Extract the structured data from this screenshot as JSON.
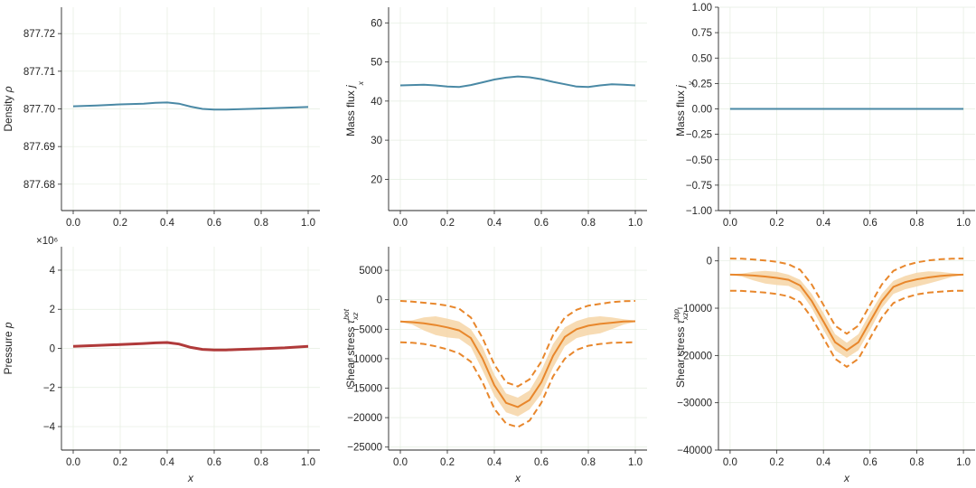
{
  "chart_data": [
    {
      "type": "line",
      "name": "density",
      "ylabel": "Density ρ",
      "ylabel_text": "Density",
      "ylabel_sym": "ρ",
      "xlabel": "",
      "xlim": [
        -0.05,
        1.05
      ],
      "ylim": [
        877.673,
        877.727
      ],
      "xticks": [
        "0.0",
        "0.2",
        "0.4",
        "0.6",
        "0.8",
        "1.0"
      ],
      "yticks": [
        "877.68",
        "877.69",
        "877.70",
        "877.71",
        "877.72"
      ],
      "grid": true,
      "series": [
        {
          "color": "#4a89a5",
          "x": [
            0.0,
            0.1,
            0.2,
            0.3,
            0.35,
            0.4,
            0.45,
            0.5,
            0.55,
            0.6,
            0.65,
            0.7,
            0.8,
            0.9,
            1.0
          ],
          "y": [
            877.7007,
            877.7009,
            877.7012,
            877.7014,
            877.7016,
            877.7017,
            877.7014,
            877.7006,
            877.7,
            877.6998,
            877.6998,
            877.6999,
            877.7001,
            877.7003,
            877.7005
          ]
        }
      ]
    },
    {
      "type": "line",
      "name": "mass-flux-x",
      "ylabel": "Mass flux jx",
      "ylabel_text": "Mass flux",
      "ylabel_sym": "j",
      "ylabel_sub": "x",
      "xlabel": "",
      "xlim": [
        -0.05,
        1.05
      ],
      "ylim": [
        12,
        64
      ],
      "xticks": [
        "0.0",
        "0.2",
        "0.4",
        "0.6",
        "0.8",
        "1.0"
      ],
      "yticks": [
        "20",
        "30",
        "40",
        "50",
        "60"
      ],
      "grid": true,
      "series": [
        {
          "color": "#4a89a5",
          "x": [
            0.0,
            0.05,
            0.1,
            0.15,
            0.2,
            0.25,
            0.3,
            0.35,
            0.4,
            0.45,
            0.5,
            0.55,
            0.6,
            0.65,
            0.7,
            0.75,
            0.8,
            0.85,
            0.9,
            0.95,
            1.0
          ],
          "y": [
            44.0,
            44.1,
            44.2,
            44.0,
            43.7,
            43.6,
            44.1,
            44.8,
            45.5,
            46.0,
            46.3,
            46.1,
            45.6,
            44.9,
            44.3,
            43.7,
            43.6,
            44.0,
            44.3,
            44.2,
            44.0
          ]
        }
      ]
    },
    {
      "type": "line",
      "name": "mass-flux-y",
      "ylabel": "Mass flux jy",
      "ylabel_text": "Mass flux",
      "ylabel_sym": "j",
      "ylabel_sub": "y",
      "xlabel": "",
      "xlim": [
        -0.05,
        1.05
      ],
      "ylim": [
        -1.0,
        1.0
      ],
      "xticks": [
        "0.0",
        "0.2",
        "0.4",
        "0.6",
        "0.8",
        "1.0"
      ],
      "yticks": [
        "−1.00",
        "−0.75",
        "−0.50",
        "−0.25",
        "0.00",
        "0.25",
        "0.50",
        "0.75",
        "1.00"
      ],
      "grid": true,
      "series": [
        {
          "color": "#4a89a5",
          "x": [
            0.0,
            1.0
          ],
          "y": [
            0.0,
            0.0
          ]
        }
      ]
    },
    {
      "type": "line",
      "name": "pressure",
      "ylabel": "Pressure p",
      "ylabel_text": "Pressure",
      "ylabel_sym": "p",
      "xlabel": "x",
      "multiplier": "×10⁶",
      "xlim": [
        -0.05,
        1.05
      ],
      "ylim": [
        -5.2,
        5.2
      ],
      "xticks": [
        "0.0",
        "0.2",
        "0.4",
        "0.6",
        "0.8",
        "1.0"
      ],
      "yticks": [
        "−4",
        "−2",
        "0",
        "2",
        "4"
      ],
      "grid": true,
      "series": [
        {
          "color": "#b03a3a",
          "x": [
            0.0,
            0.1,
            0.2,
            0.3,
            0.35,
            0.4,
            0.45,
            0.5,
            0.55,
            0.6,
            0.65,
            0.7,
            0.8,
            0.9,
            1.0
          ],
          "y": [
            0.1,
            0.15,
            0.2,
            0.25,
            0.28,
            0.3,
            0.22,
            0.05,
            -0.05,
            -0.08,
            -0.08,
            -0.06,
            -0.02,
            0.03,
            0.1
          ]
        }
      ]
    },
    {
      "type": "area",
      "name": "shear-bot",
      "ylabel": "Shear stress τxz bot",
      "ylabel_text": "Shear stress",
      "ylabel_sym": "τ",
      "ylabel_sub": "xz",
      "ylabel_sup": "bot",
      "xlabel": "x",
      "xlim": [
        -0.05,
        1.05
      ],
      "ylim": [
        -25500,
        9000
      ],
      "xticks": [
        "0.0",
        "0.2",
        "0.4",
        "0.6",
        "0.8",
        "1.0"
      ],
      "yticks": [
        "−25000",
        "−20000",
        "−15000",
        "−10000",
        "−5000",
        "0",
        "5000"
      ],
      "grid": true,
      "x": [
        0.0,
        0.05,
        0.1,
        0.15,
        0.2,
        0.25,
        0.3,
        0.35,
        0.4,
        0.45,
        0.5,
        0.55,
        0.6,
        0.65,
        0.7,
        0.75,
        0.8,
        0.85,
        0.9,
        0.95,
        1.0
      ],
      "mean": [
        -3700,
        -3800,
        -4000,
        -4300,
        -4700,
        -5200,
        -6500,
        -10000,
        -14500,
        -17500,
        -18200,
        -17000,
        -14000,
        -9500,
        -6300,
        -5000,
        -4400,
        -4100,
        -3900,
        -3700,
        -3650
      ],
      "band_upper": [
        -3600,
        -3500,
        -3000,
        -2800,
        -3200,
        -3700,
        -5000,
        -8000,
        -12700,
        -15900,
        -16600,
        -15400,
        -12000,
        -7500,
        -4700,
        -3600,
        -3000,
        -2800,
        -3000,
        -3300,
        -3550
      ],
      "band_lower": [
        -3800,
        -4200,
        -5200,
        -6000,
        -6400,
        -6600,
        -8000,
        -12000,
        -16300,
        -19100,
        -19800,
        -18600,
        -16000,
        -11500,
        -7900,
        -6500,
        -6000,
        -5700,
        -5000,
        -4200,
        -3750
      ],
      "dashed_upper": [
        -200,
        -300,
        -500,
        -700,
        -1000,
        -1500,
        -3000,
        -6500,
        -11000,
        -14000,
        -14700,
        -13500,
        -10500,
        -6000,
        -3000,
        -1700,
        -1000,
        -700,
        -400,
        -250,
        -200
      ],
      "dashed_lower": [
        -7200,
        -7300,
        -7500,
        -7900,
        -8400,
        -9100,
        -10500,
        -14000,
        -18500,
        -21000,
        -21600,
        -20500,
        -17500,
        -13000,
        -10000,
        -8500,
        -7800,
        -7500,
        -7300,
        -7250,
        -7200
      ],
      "colors": {
        "line": "#e8872c",
        "band": "#f6d7ab",
        "dashed": "#e8872c"
      }
    },
    {
      "type": "area",
      "name": "shear-top",
      "ylabel": "Shear stress τxz top",
      "ylabel_text": "Shear stress",
      "ylabel_sym": "τ",
      "ylabel_sub": "xz",
      "ylabel_sup": "top",
      "xlabel": "x",
      "xlim": [
        -0.05,
        1.05
      ],
      "ylim": [
        -40000,
        3000
      ],
      "xticks": [
        "0.0",
        "0.2",
        "0.4",
        "0.6",
        "0.8",
        "1.0"
      ],
      "yticks": [
        "−40000",
        "−30000",
        "−20000",
        "−10000",
        "0"
      ],
      "grid": true,
      "x": [
        0.0,
        0.05,
        0.1,
        0.15,
        0.2,
        0.25,
        0.3,
        0.35,
        0.4,
        0.45,
        0.5,
        0.55,
        0.6,
        0.65,
        0.7,
        0.75,
        0.8,
        0.85,
        0.9,
        0.95,
        1.0
      ],
      "mean": [
        -2900,
        -2950,
        -3100,
        -3300,
        -3600,
        -4000,
        -5200,
        -8500,
        -12800,
        -17200,
        -18900,
        -17200,
        -12800,
        -8500,
        -5500,
        -4500,
        -3900,
        -3500,
        -3200,
        -3000,
        -2900
      ],
      "band_upper": [
        -2800,
        -2700,
        -2300,
        -2100,
        -2300,
        -2900,
        -4000,
        -7000,
        -11000,
        -15500,
        -17300,
        -15500,
        -11000,
        -7000,
        -4200,
        -3200,
        -2500,
        -2200,
        -2300,
        -2600,
        -2850
      ],
      "band_lower": [
        -3000,
        -3300,
        -4100,
        -4800,
        -5100,
        -5300,
        -6500,
        -10000,
        -14600,
        -18900,
        -20500,
        -18900,
        -14600,
        -10000,
        -7000,
        -6000,
        -5400,
        -4800,
        -4100,
        -3400,
        -2950
      ],
      "dashed_upper": [
        500,
        450,
        300,
        100,
        -200,
        -700,
        -1900,
        -5000,
        -9300,
        -13700,
        -15400,
        -13700,
        -9300,
        -5000,
        -2100,
        -1000,
        -300,
        100,
        350,
        450,
        500
      ],
      "dashed_lower": [
        -6300,
        -6350,
        -6500,
        -6700,
        -7000,
        -7500,
        -8700,
        -12000,
        -16300,
        -20700,
        -22400,
        -20700,
        -16300,
        -12000,
        -8900,
        -7800,
        -7100,
        -6700,
        -6500,
        -6350,
        -6300
      ],
      "colors": {
        "line": "#e8872c",
        "band": "#f6d7ab",
        "dashed": "#e8872c"
      }
    }
  ]
}
